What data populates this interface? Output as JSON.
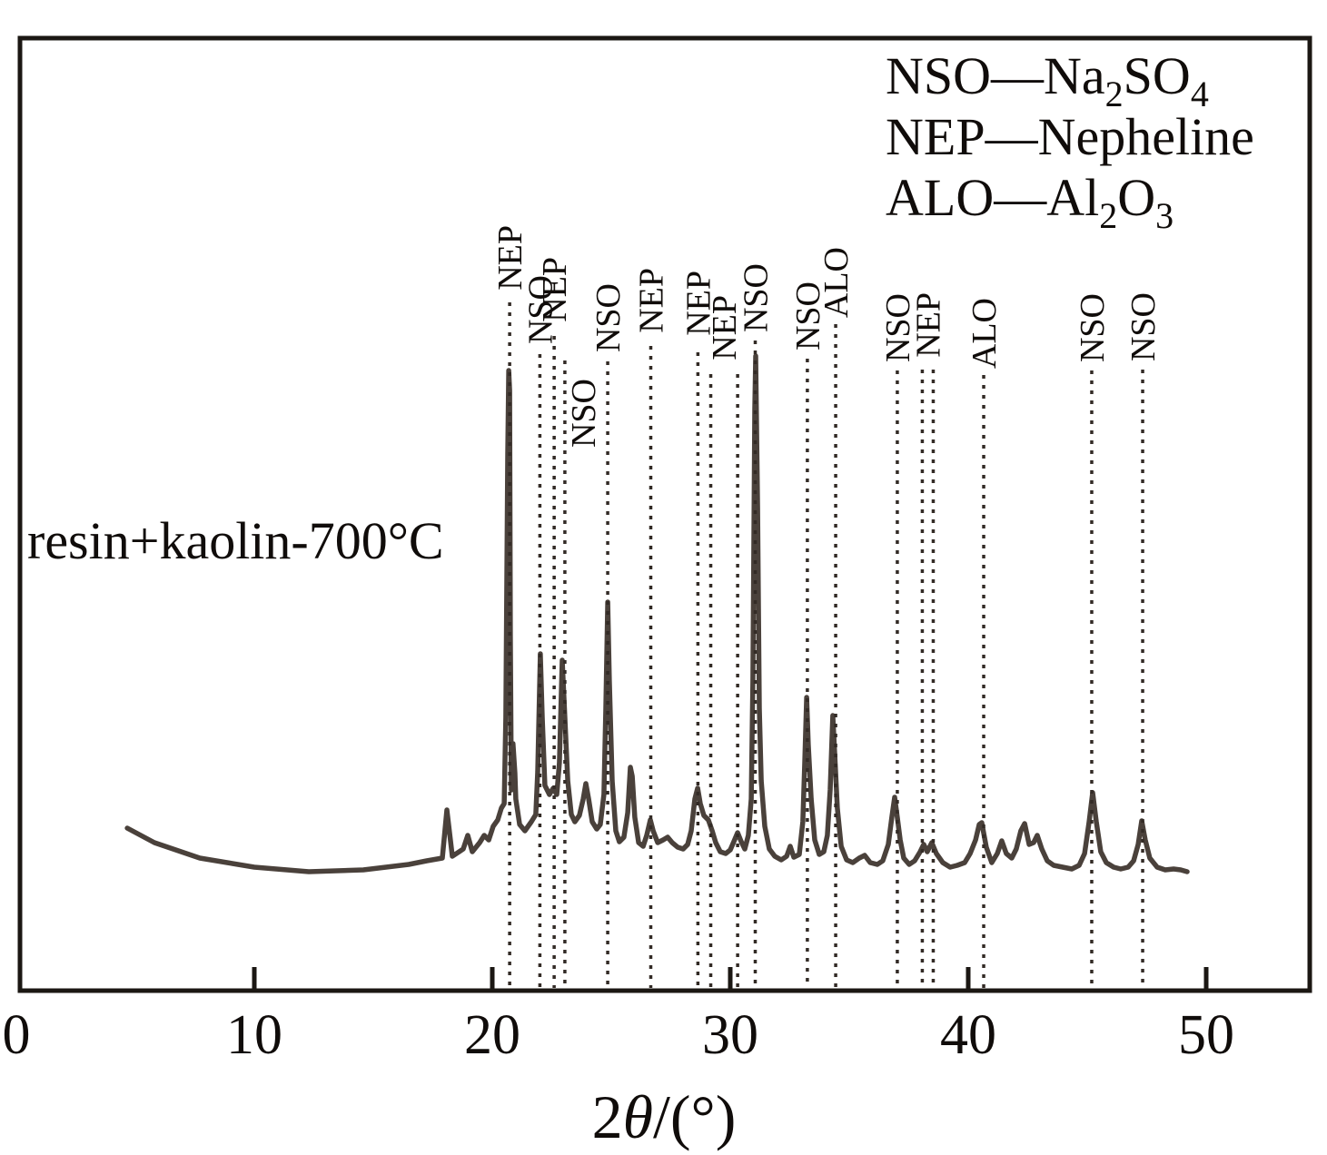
{
  "chart_data": {
    "type": "line",
    "title": "",
    "annotation": "resin+kaolin-700°C",
    "xlabel_parts": [
      [
        "2",
        0
      ],
      [
        "θ",
        3
      ],
      [
        "/(°)",
        0
      ]
    ],
    "xlim": [
      0,
      54.4
    ],
    "ylim": [
      0,
      740
    ],
    "grid": false,
    "legend_position": "top-right",
    "x_axis": {
      "ticks": [
        0,
        10,
        20,
        30,
        40,
        50
      ],
      "tick_labels": [
        "0",
        "10",
        "20",
        "30",
        "40",
        "50"
      ]
    },
    "legend": {
      "separator": "—",
      "entries": [
        {
          "abbr": "NSO",
          "formula": [
            [
              "Na",
              0
            ],
            [
              "2",
              1
            ],
            [
              "SO",
              0
            ],
            [
              "4",
              1
            ]
          ]
        },
        {
          "abbr": "NEP",
          "formula": [
            [
              "Nepheline",
              0
            ]
          ]
        },
        {
          "abbr": "ALO",
          "formula": [
            [
              "Al",
              0
            ],
            [
              "2",
              1
            ],
            [
              "O",
              0
            ],
            [
              "3",
              1
            ]
          ]
        }
      ]
    },
    "peak_markers": [
      {
        "name": "NEP",
        "lines_theta": [
          20.73
        ],
        "label_theta": 20.73,
        "label_top": 248,
        "line_top": 333
      },
      {
        "name": "NSO",
        "lines_theta": [
          22.0
        ],
        "label_theta": 22.0,
        "label_top": 303,
        "line_top": 390
      },
      {
        "name": "NEP",
        "lines_theta": [
          22.6
        ],
        "label_theta": 22.6,
        "label_top": 283,
        "line_top": 370
      },
      {
        "name": "NSO",
        "lines_theta": [
          23.05
        ],
        "label_theta": 23.82,
        "label_top": 417,
        "line_top": 397
      },
      {
        "name": "NSO",
        "lines_theta": [
          24.85
        ],
        "label_theta": 24.85,
        "label_top": 312,
        "line_top": 398
      },
      {
        "name": "NEP",
        "lines_theta": [
          26.66
        ],
        "label_theta": 26.66,
        "label_top": 295,
        "line_top": 381
      },
      {
        "name": "NEP",
        "lines_theta": [
          28.64
        ],
        "label_theta": 28.64,
        "label_top": 298,
        "line_top": 388
      },
      {
        "name": "NEP",
        "lines_theta": [
          29.18,
          30.31
        ],
        "label_theta": 29.73,
        "label_top": 325,
        "line_top": 412
      },
      {
        "name": "NSO",
        "lines_theta": [
          31.05
        ],
        "label_theta": 31.05,
        "label_top": 290,
        "line_top": 375
      },
      {
        "name": "NSO",
        "lines_theta": [
          33.24
        ],
        "label_theta": 33.24,
        "label_top": 310,
        "line_top": 395
      },
      {
        "name": "ALO",
        "lines_theta": [
          34.43
        ],
        "label_theta": 34.43,
        "label_top": 272,
        "line_top": 357
      },
      {
        "name": "NSO",
        "lines_theta": [
          37.02
        ],
        "label_theta": 37.02,
        "label_top": 323,
        "line_top": 408
      },
      {
        "name": "NEP",
        "lines_theta": [
          38.07,
          38.53
        ],
        "label_theta": 38.3,
        "label_top": 322,
        "line_top": 407
      },
      {
        "name": "ALO",
        "lines_theta": [
          40.65
        ],
        "label_theta": 40.65,
        "label_top": 328,
        "line_top": 413
      },
      {
        "name": "NSO",
        "lines_theta": [
          45.19
        ],
        "label_theta": 45.19,
        "label_top": 323,
        "line_top": 408
      },
      {
        "name": "NSO",
        "lines_theta": [
          47.33
        ],
        "label_theta": 47.33,
        "label_top": 322,
        "line_top": 407
      }
    ],
    "series": [
      {
        "name": "resin+kaolin-700°C",
        "points": [
          [
            4.66,
            179
          ],
          [
            5.8,
            163
          ],
          [
            7.71,
            146
          ],
          [
            10.0,
            136
          ],
          [
            12.29,
            131
          ],
          [
            14.58,
            133
          ],
          [
            16.49,
            139
          ],
          [
            17.25,
            143
          ],
          [
            17.9,
            146
          ],
          [
            18.09,
            199
          ],
          [
            18.32,
            148
          ],
          [
            18.78,
            156
          ],
          [
            18.97,
            171
          ],
          [
            19.16,
            153
          ],
          [
            19.47,
            163
          ],
          [
            19.66,
            171
          ],
          [
            19.85,
            166
          ],
          [
            20.04,
            181
          ],
          [
            20.23,
            188
          ],
          [
            20.38,
            201
          ],
          [
            20.5,
            206
          ],
          [
            20.57,
            301
          ],
          [
            20.65,
            591
          ],
          [
            20.69,
            683
          ],
          [
            20.73,
            661
          ],
          [
            20.76,
            391
          ],
          [
            20.8,
            221
          ],
          [
            20.87,
            272
          ],
          [
            20.95,
            240
          ],
          [
            20.99,
            211
          ],
          [
            21.15,
            183
          ],
          [
            21.37,
            176
          ],
          [
            21.64,
            186
          ],
          [
            21.83,
            194
          ],
          [
            21.91,
            241
          ],
          [
            22.02,
            371
          ],
          [
            22.1,
            301
          ],
          [
            22.21,
            226
          ],
          [
            22.4,
            216
          ],
          [
            22.56,
            223
          ],
          [
            22.71,
            216
          ],
          [
            22.82,
            251
          ],
          [
            22.94,
            364
          ],
          [
            23.05,
            301
          ],
          [
            23.17,
            231
          ],
          [
            23.32,
            194
          ],
          [
            23.47,
            186
          ],
          [
            23.66,
            193
          ],
          [
            23.82,
            211
          ],
          [
            23.93,
            228
          ],
          [
            24.05,
            211
          ],
          [
            24.2,
            186
          ],
          [
            24.39,
            178
          ],
          [
            24.54,
            183
          ],
          [
            24.69,
            216
          ],
          [
            24.77,
            311
          ],
          [
            24.85,
            428
          ],
          [
            24.92,
            341
          ],
          [
            25.04,
            231
          ],
          [
            25.19,
            176
          ],
          [
            25.34,
            164
          ],
          [
            25.53,
            169
          ],
          [
            25.69,
            196
          ],
          [
            25.8,
            246
          ],
          [
            25.88,
            236
          ],
          [
            25.99,
            191
          ],
          [
            26.15,
            163
          ],
          [
            26.34,
            159
          ],
          [
            26.49,
            171
          ],
          [
            26.64,
            188
          ],
          [
            26.76,
            176
          ],
          [
            26.95,
            163
          ],
          [
            27.18,
            166
          ],
          [
            27.37,
            169
          ],
          [
            27.56,
            163
          ],
          [
            27.79,
            158
          ],
          [
            28.02,
            156
          ],
          [
            28.21,
            161
          ],
          [
            28.36,
            176
          ],
          [
            28.51,
            211
          ],
          [
            28.63,
            223
          ],
          [
            28.74,
            206
          ],
          [
            28.89,
            193
          ],
          [
            29.08,
            188
          ],
          [
            29.24,
            176
          ],
          [
            29.39,
            163
          ],
          [
            29.58,
            153
          ],
          [
            29.81,
            151
          ],
          [
            30.0,
            155
          ],
          [
            30.15,
            164
          ],
          [
            30.31,
            174
          ],
          [
            30.46,
            164
          ],
          [
            30.61,
            156
          ],
          [
            30.76,
            171
          ],
          [
            30.88,
            211
          ],
          [
            30.95,
            341
          ],
          [
            31.03,
            641
          ],
          [
            31.07,
            699
          ],
          [
            31.15,
            531
          ],
          [
            31.22,
            311
          ],
          [
            31.3,
            231
          ],
          [
            31.45,
            181
          ],
          [
            31.64,
            156
          ],
          [
            31.87,
            148
          ],
          [
            32.14,
            144
          ],
          [
            32.37,
            148
          ],
          [
            32.52,
            159
          ],
          [
            32.67,
            147
          ],
          [
            32.9,
            150
          ],
          [
            33.05,
            186
          ],
          [
            33.13,
            251
          ],
          [
            33.21,
            323
          ],
          [
            33.28,
            271
          ],
          [
            33.4,
            211
          ],
          [
            33.55,
            166
          ],
          [
            33.74,
            150
          ],
          [
            33.93,
            153
          ],
          [
            34.08,
            171
          ],
          [
            34.2,
            221
          ],
          [
            34.31,
            303
          ],
          [
            34.39,
            261
          ],
          [
            34.5,
            201
          ],
          [
            34.66,
            159
          ],
          [
            34.89,
            144
          ],
          [
            35.15,
            141
          ],
          [
            35.42,
            146
          ],
          [
            35.65,
            149
          ],
          [
            35.88,
            141
          ],
          [
            36.18,
            139
          ],
          [
            36.41,
            143
          ],
          [
            36.64,
            161
          ],
          [
            36.79,
            191
          ],
          [
            36.91,
            213
          ],
          [
            37.02,
            191
          ],
          [
            37.14,
            166
          ],
          [
            37.29,
            146
          ],
          [
            37.52,
            139
          ],
          [
            37.75,
            143
          ],
          [
            37.98,
            153
          ],
          [
            38.13,
            161
          ],
          [
            38.28,
            153
          ],
          [
            38.47,
            163
          ],
          [
            38.66,
            151
          ],
          [
            38.93,
            141
          ],
          [
            39.24,
            136
          ],
          [
            39.54,
            138
          ],
          [
            39.85,
            141
          ],
          [
            40.08,
            151
          ],
          [
            40.31,
            166
          ],
          [
            40.46,
            183
          ],
          [
            40.57,
            185
          ],
          [
            40.76,
            158
          ],
          [
            40.99,
            141
          ],
          [
            41.22,
            151
          ],
          [
            41.41,
            165
          ],
          [
            41.6,
            151
          ],
          [
            41.83,
            146
          ],
          [
            42.02,
            156
          ],
          [
            42.21,
            176
          ],
          [
            42.37,
            184
          ],
          [
            42.56,
            161
          ],
          [
            42.75,
            163
          ],
          [
            42.9,
            171
          ],
          [
            43.09,
            156
          ],
          [
            43.32,
            143
          ],
          [
            43.59,
            138
          ],
          [
            43.97,
            136
          ],
          [
            44.35,
            134
          ],
          [
            44.66,
            138
          ],
          [
            44.89,
            151
          ],
          [
            45.08,
            186
          ],
          [
            45.23,
            218
          ],
          [
            45.38,
            186
          ],
          [
            45.57,
            153
          ],
          [
            45.8,
            141
          ],
          [
            46.11,
            136
          ],
          [
            46.41,
            134
          ],
          [
            46.72,
            136
          ],
          [
            46.95,
            143
          ],
          [
            47.14,
            161
          ],
          [
            47.29,
            187
          ],
          [
            47.44,
            166
          ],
          [
            47.63,
            146
          ],
          [
            47.94,
            136
          ],
          [
            48.28,
            133
          ],
          [
            48.63,
            134
          ],
          [
            48.93,
            133
          ],
          [
            49.2,
            131
          ]
        ]
      }
    ],
    "colors": {
      "curve": "#4a413b",
      "marker_line": "#332b26",
      "axis": "#1b1713",
      "text": "#100c0a"
    }
  }
}
